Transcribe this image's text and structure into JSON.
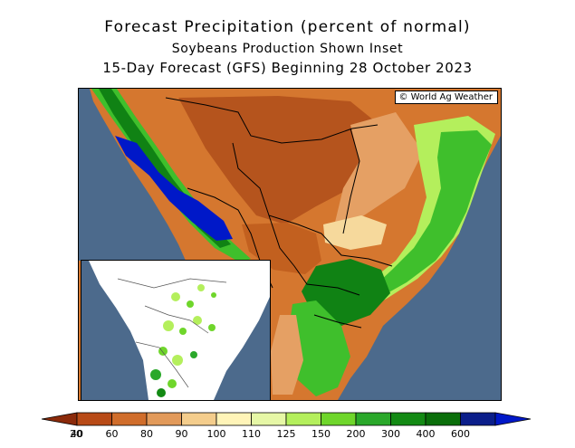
{
  "title": "Forecast Precipitation (percent of normal)",
  "subtitle": "Soybeans Production Shown Inset",
  "subtitle2": "15-Day Forecast (GFS) Beginning 28 October 2023",
  "credit": "© World Ag Weather",
  "colorbar": {
    "ticks": [
      "20",
      "40",
      "60",
      "80",
      "90",
      "100",
      "110",
      "125",
      "150",
      "200",
      "300",
      "400",
      "600"
    ],
    "colors": [
      "#8b2a0a",
      "#b84a16",
      "#d06d2b",
      "#e29a5a",
      "#f4cd8c",
      "#fff4b8",
      "#e6f7a6",
      "#b4ef5c",
      "#6fd62b",
      "#2aa82a",
      "#138a14",
      "#0a6e0a",
      "#0b1e8a",
      "#0018c8"
    ]
  },
  "colors": {
    "ocean": "#4c6a8c",
    "dry_dark": "#b5541d",
    "dry": "#d5772f",
    "dry_light": "#e5a064",
    "near_normal": "#f6d99c",
    "wet_light": "#b4ef5c",
    "wet": "#3fbf2c",
    "wet_dark": "#108214",
    "very_wet": "#0018c8"
  }
}
